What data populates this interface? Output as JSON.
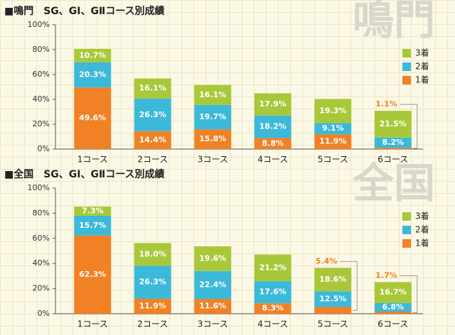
{
  "chart_data": [
    {
      "type": "bar",
      "stacked": true,
      "title": "■鳴門　SG、GI、GⅡコース別成績",
      "watermark": "鳴門",
      "categories": [
        "1コース",
        "2コース",
        "3コース",
        "4コース",
        "5コース",
        "6コース"
      ],
      "series": [
        {
          "name": "1着",
          "color": "#f08124",
          "values": [
            49.6,
            14.4,
            15.8,
            8.8,
            11.9,
            1.1
          ],
          "value_labels": [
            "49.6%",
            "14.4%",
            "15.8%",
            "8.8%",
            "11.9%",
            "1.1%"
          ]
        },
        {
          "name": "2着",
          "color": "#3cb9d9",
          "values": [
            20.3,
            26.3,
            19.7,
            18.2,
            9.1,
            8.2
          ],
          "value_labels": [
            "20.3%",
            "26.3%",
            "19.7%",
            "18.2%",
            "9.1%",
            "8.2%"
          ]
        },
        {
          "name": "3着",
          "color": "#a8c83a",
          "values": [
            10.7,
            16.1,
            16.1,
            17.9,
            19.3,
            21.5
          ],
          "value_labels": [
            "10.7%",
            "16.1%",
            "16.1%",
            "17.9%",
            "19.3%",
            "21.5%"
          ]
        }
      ],
      "ylim": [
        0,
        100
      ],
      "yticks": [
        {
          "value": 0,
          "label": "0%"
        },
        {
          "value": 20,
          "label": "20%"
        },
        {
          "value": 40,
          "label": "40%"
        },
        {
          "value": 60,
          "label": "60%"
        },
        {
          "value": 80,
          "label": "80%"
        },
        {
          "value": 100,
          "label": "100%"
        }
      ],
      "legend": "right"
    },
    {
      "type": "bar",
      "stacked": true,
      "title": "■全国　SG、GI、GⅡコース別成績",
      "watermark": "全国",
      "categories": [
        "1コース",
        "2コース",
        "3コース",
        "4コース",
        "5コース",
        "6コース"
      ],
      "series": [
        {
          "name": "1着",
          "color": "#f08124",
          "values": [
            62.3,
            11.9,
            11.6,
            8.3,
            5.4,
            1.7
          ],
          "value_labels": [
            "62.3%",
            "11.9%",
            "11.6%",
            "8.3%",
            "5.4%",
            "1.7%"
          ]
        },
        {
          "name": "2着",
          "color": "#3cb9d9",
          "values": [
            15.7,
            26.3,
            22.4,
            17.6,
            12.5,
            6.8
          ],
          "value_labels": [
            "15.7%",
            "26.3%",
            "22.4%",
            "17.6%",
            "12.5%",
            "6.8%"
          ]
        },
        {
          "name": "3着",
          "color": "#a8c83a",
          "values": [
            7.3,
            18.0,
            19.6,
            21.2,
            18.6,
            16.7
          ],
          "value_labels": [
            "7.3%",
            "18.0%",
            "19.6%",
            "21.2%",
            "18.6%",
            "16.7%"
          ]
        }
      ],
      "ylim": [
        0,
        100
      ],
      "yticks": [
        {
          "value": 0,
          "label": "0%"
        },
        {
          "value": 20,
          "label": "20%"
        },
        {
          "value": 40,
          "label": "40%"
        },
        {
          "value": 60,
          "label": "60%"
        },
        {
          "value": 80,
          "label": "80%"
        },
        {
          "value": 100,
          "label": "100%"
        }
      ],
      "legend": "right"
    }
  ]
}
